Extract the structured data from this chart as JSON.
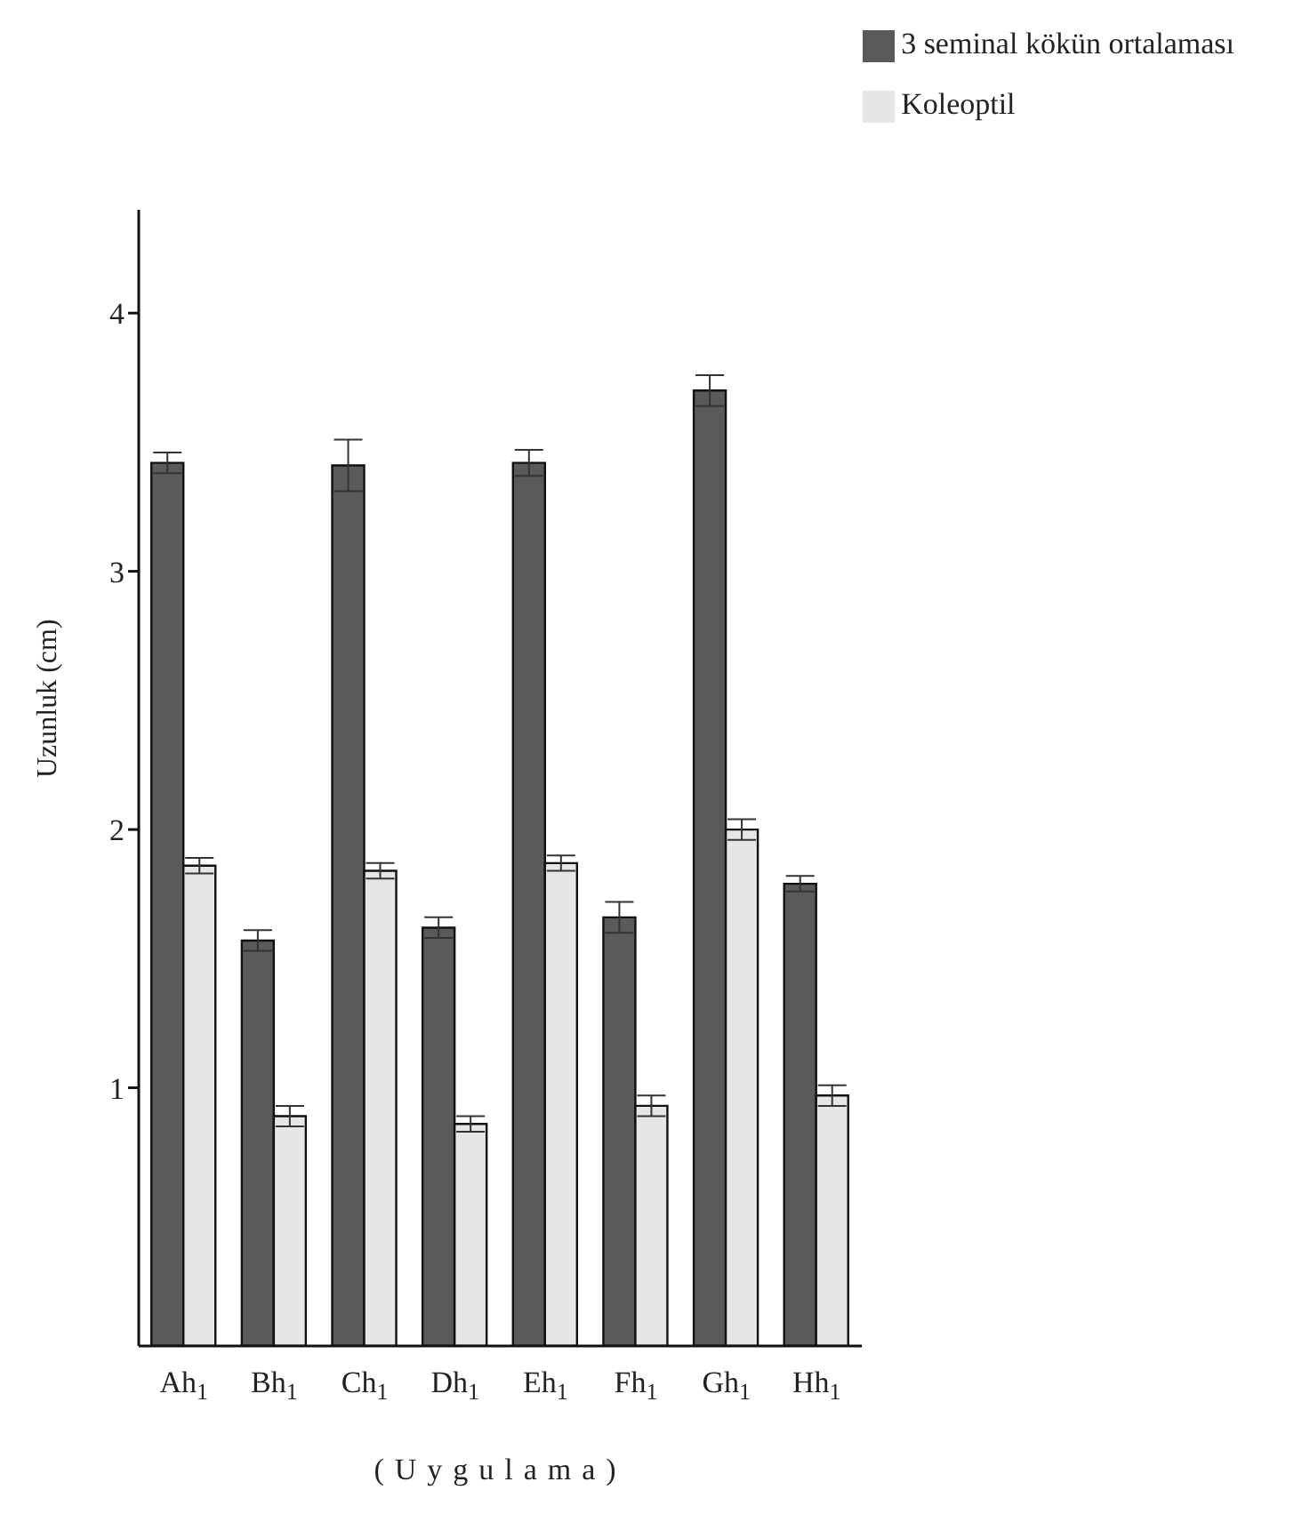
{
  "chart_data": {
    "type": "bar",
    "categories": [
      "Ah$_{1}$",
      "Bh$_{1}$",
      "Ch$_{1}$",
      "Dh$_{1}$",
      "Eh$_{1}$",
      "Fh$_{1}$",
      "Gh$_{1}$",
      "Hh$_{1}$"
    ],
    "series": [
      {
        "name": "3 seminal kökün ortalaması",
        "color": "#5a5a5a",
        "values": [
          3.42,
          1.57,
          3.41,
          1.62,
          3.42,
          1.66,
          3.7,
          1.79
        ],
        "errors": [
          0.04,
          0.04,
          0.1,
          0.04,
          0.05,
          0.06,
          0.06,
          0.03
        ]
      },
      {
        "name": "Koleoptil",
        "color": "#e6e6e6",
        "values": [
          1.86,
          0.89,
          1.84,
          0.86,
          1.87,
          0.93,
          2.0,
          0.97
        ],
        "errors": [
          0.03,
          0.04,
          0.03,
          0.03,
          0.03,
          0.04,
          0.04,
          0.04
        ]
      }
    ],
    "xlabel": "(Uygulama)",
    "ylabel": "Uzunluk (cm)",
    "ylim": [
      0,
      4.4
    ],
    "yticks": [
      1,
      2,
      3,
      4
    ],
    "grid": false,
    "legend": "top right"
  }
}
